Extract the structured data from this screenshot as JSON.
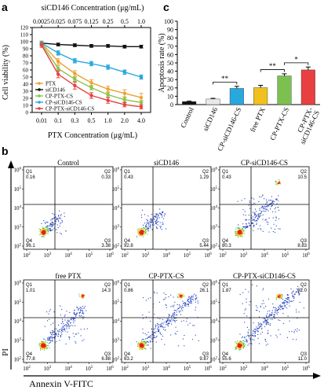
{
  "panel_labels": {
    "a": "a",
    "b": "b",
    "c": "c"
  },
  "chart_data": [
    {
      "type": "line",
      "panel": "a",
      "top_axis_title": "siCD146  Concentration (μg/mL)",
      "top_ticks": [
        "0.0025",
        "0.025",
        "0.075",
        "0.125",
        "0.25",
        "0.5",
        "1.0"
      ],
      "xlabel": "PTX Concentration (μg/mL)",
      "ylabel": "Cell viability (%)",
      "x": [
        "0.01",
        "0.1",
        "0.3",
        "0.5",
        "1.0",
        "2.0",
        "4.0"
      ],
      "ylim": [
        0,
        120
      ],
      "yticks": [
        "0",
        "10",
        "20",
        "30",
        "40",
        "50",
        "60",
        "70",
        "80",
        "90",
        "100",
        "110",
        "120"
      ],
      "series": [
        {
          "name": "PTX",
          "color": "#f0a030",
          "values": [
            98,
            72,
            55,
            42,
            33,
            27,
            21
          ],
          "err": [
            3,
            4,
            4,
            4,
            4,
            5,
            6
          ]
        },
        {
          "name": "siCD146",
          "color": "#111111",
          "values": [
            98,
            96,
            95,
            94,
            94,
            93,
            93
          ],
          "err": [
            2,
            2,
            2,
            2,
            2,
            2,
            2
          ]
        },
        {
          "name": "CP-PTX-CS",
          "color": "#8bc34a",
          "values": [
            97,
            62,
            47,
            35,
            25,
            18,
            14
          ],
          "err": [
            3,
            4,
            3,
            3,
            3,
            3,
            3
          ]
        },
        {
          "name": "CP-siCD146-CS",
          "color": "#29a8e0",
          "values": [
            98,
            84,
            73,
            69,
            64,
            57,
            50
          ],
          "err": [
            2,
            3,
            3,
            3,
            3,
            3,
            3
          ]
        },
        {
          "name": "CP-PTX-siCD146-CS",
          "color": "#e84040",
          "values": [
            95,
            54,
            38,
            24,
            17,
            11,
            8
          ],
          "err": [
            3,
            5,
            5,
            4,
            4,
            3,
            3
          ]
        }
      ]
    },
    {
      "type": "bar",
      "panel": "c",
      "ylabel": "Apoptosis rate (%)",
      "ylim": [
        0,
        100
      ],
      "yticks": [
        "0",
        "10",
        "20",
        "30",
        "40",
        "50",
        "60",
        "70",
        "80",
        "90",
        "100"
      ],
      "categories": [
        "Control",
        "siCD146",
        "CP-siCD146-CS",
        "free PTX",
        "CP-PTX-CS",
        "CP-PTX-\nsiCD146-CS"
      ],
      "colors": [
        "#111111",
        "#e8e8e8",
        "#29a8e0",
        "#f0c020",
        "#7cc050",
        "#e84040"
      ],
      "values": [
        3.6,
        6.7,
        19.4,
        20.3,
        34.4,
        41.6
      ],
      "err": [
        0.5,
        0.8,
        2.5,
        2.8,
        2.5,
        3.5
      ],
      "significance": [
        {
          "from": 1,
          "to": 2,
          "label": "**"
        },
        {
          "from": 3,
          "to": 4,
          "label": "**"
        },
        {
          "from": 4,
          "to": 5,
          "label": "*"
        }
      ]
    },
    {
      "type": "scatter",
      "panel": "b",
      "xlabel": "Annexin V-FITC",
      "ylabel": "PI",
      "tick_labels": [
        "10",
        "10",
        "10",
        "10",
        "10"
      ],
      "tick_exps": [
        "2",
        "3",
        "4",
        "5",
        "6"
      ],
      "plots": [
        {
          "title": "Control",
          "q1": "0.16",
          "q2": "0.33",
          "q3": "3.38",
          "q4": "96.1",
          "pattern": "tight"
        },
        {
          "title": "siCD146",
          "q1": "0.43",
          "q2": "1.29",
          "q3": "5.44",
          "q4": "92.8",
          "pattern": "tight_plus"
        },
        {
          "title": "CP-siCD146-CS",
          "q1": "0.43",
          "q2": "10.5",
          "q3": "8.83",
          "q4": "80.3",
          "pattern": "spread"
        },
        {
          "title": "free PTX",
          "q1": "1.01",
          "q2": "14.3",
          "q3": "6.88",
          "q4": "77.8",
          "pattern": "diag"
        },
        {
          "title": "CP-PTX-CS",
          "q1": "0.86",
          "q2": "26.1",
          "q3": "9.87",
          "q4": "63.2",
          "pattern": "diag_strong"
        },
        {
          "title": "CP-PTX-siCD146-CS",
          "q1": "1.87",
          "q2": "32.0",
          "q3": "11.0",
          "q4": "55.6",
          "pattern": "diag_strongest"
        }
      ],
      "quadrant_labels": {
        "q1": "Q1",
        "q2": "Q2",
        "q3": "Q3",
        "q4": "Q4"
      }
    }
  ]
}
